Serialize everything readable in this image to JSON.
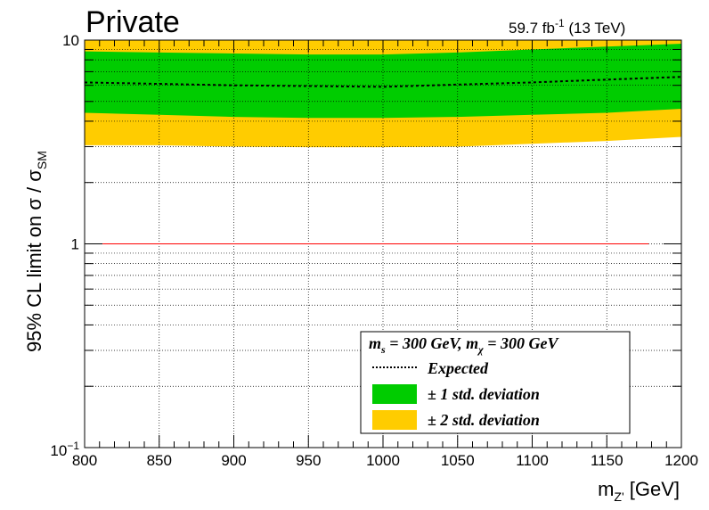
{
  "header": {
    "title": "Private",
    "lumi_value": "59.7 fb",
    "lumi_exp": "-1",
    "lumi_energy": " (13 TeV)"
  },
  "axes": {
    "x_title_main": "m",
    "x_title_sub": "Z'",
    "x_title_unit": " [GeV]",
    "y_title_main": "95% CL limit on  σ / σ",
    "y_title_sub": "SM"
  },
  "legend": {
    "header_main": "m",
    "header_sub1": "s",
    "header_mid": " = 300 GeV, m",
    "header_sub2": "χ",
    "header_end": " = 300 GeV",
    "expected_label": "Expected",
    "one_sigma_label": "± 1 std. deviation",
    "two_sigma_label": "± 2 std. deviation"
  },
  "colors": {
    "one_sigma": "#00cc00",
    "two_sigma": "#ffcc00",
    "reference_line": "#ff0000",
    "expected": "#000000"
  },
  "chart_data": {
    "type": "area",
    "x_scale": "linear",
    "y_scale": "log",
    "xlim": [
      800,
      1200
    ],
    "ylim": [
      0.1,
      10
    ],
    "grid": true,
    "legend_position": "bottom-right",
    "x_ticks": [
      800,
      850,
      900,
      950,
      1000,
      1050,
      1100,
      1150,
      1200
    ],
    "y_ticks": [
      {
        "value": 0.1,
        "label": "10",
        "exp": "−1"
      },
      {
        "value": 1,
        "label": "1",
        "exp": ""
      },
      {
        "value": 10,
        "label": "10",
        "exp": ""
      }
    ],
    "x": [
      800,
      850,
      900,
      950,
      1000,
      1050,
      1100,
      1150,
      1200
    ],
    "series": [
      {
        "name": "Expected",
        "values": [
          6.2,
          6.1,
          6.0,
          5.95,
          5.9,
          6.05,
          6.2,
          6.4,
          6.6
        ]
      },
      {
        "name": "± 1 std. deviation",
        "lower": [
          4.4,
          4.3,
          4.2,
          4.15,
          4.15,
          4.2,
          4.3,
          4.4,
          4.6
        ],
        "upper": [
          8.8,
          8.7,
          8.6,
          8.5,
          8.5,
          8.7,
          9.0,
          9.3,
          9.6
        ]
      },
      {
        "name": "± 2 std. deviation",
        "lower": [
          3.05,
          3.05,
          3.0,
          2.98,
          2.98,
          3.0,
          3.1,
          3.2,
          3.35
        ],
        "upper": [
          10.5,
          10.5,
          10.5,
          10.5,
          10.5,
          10.5,
          10.5,
          10.5,
          10.5
        ]
      }
    ],
    "reference_line": {
      "y": 1,
      "x_range": [
        812,
        1178
      ]
    }
  }
}
